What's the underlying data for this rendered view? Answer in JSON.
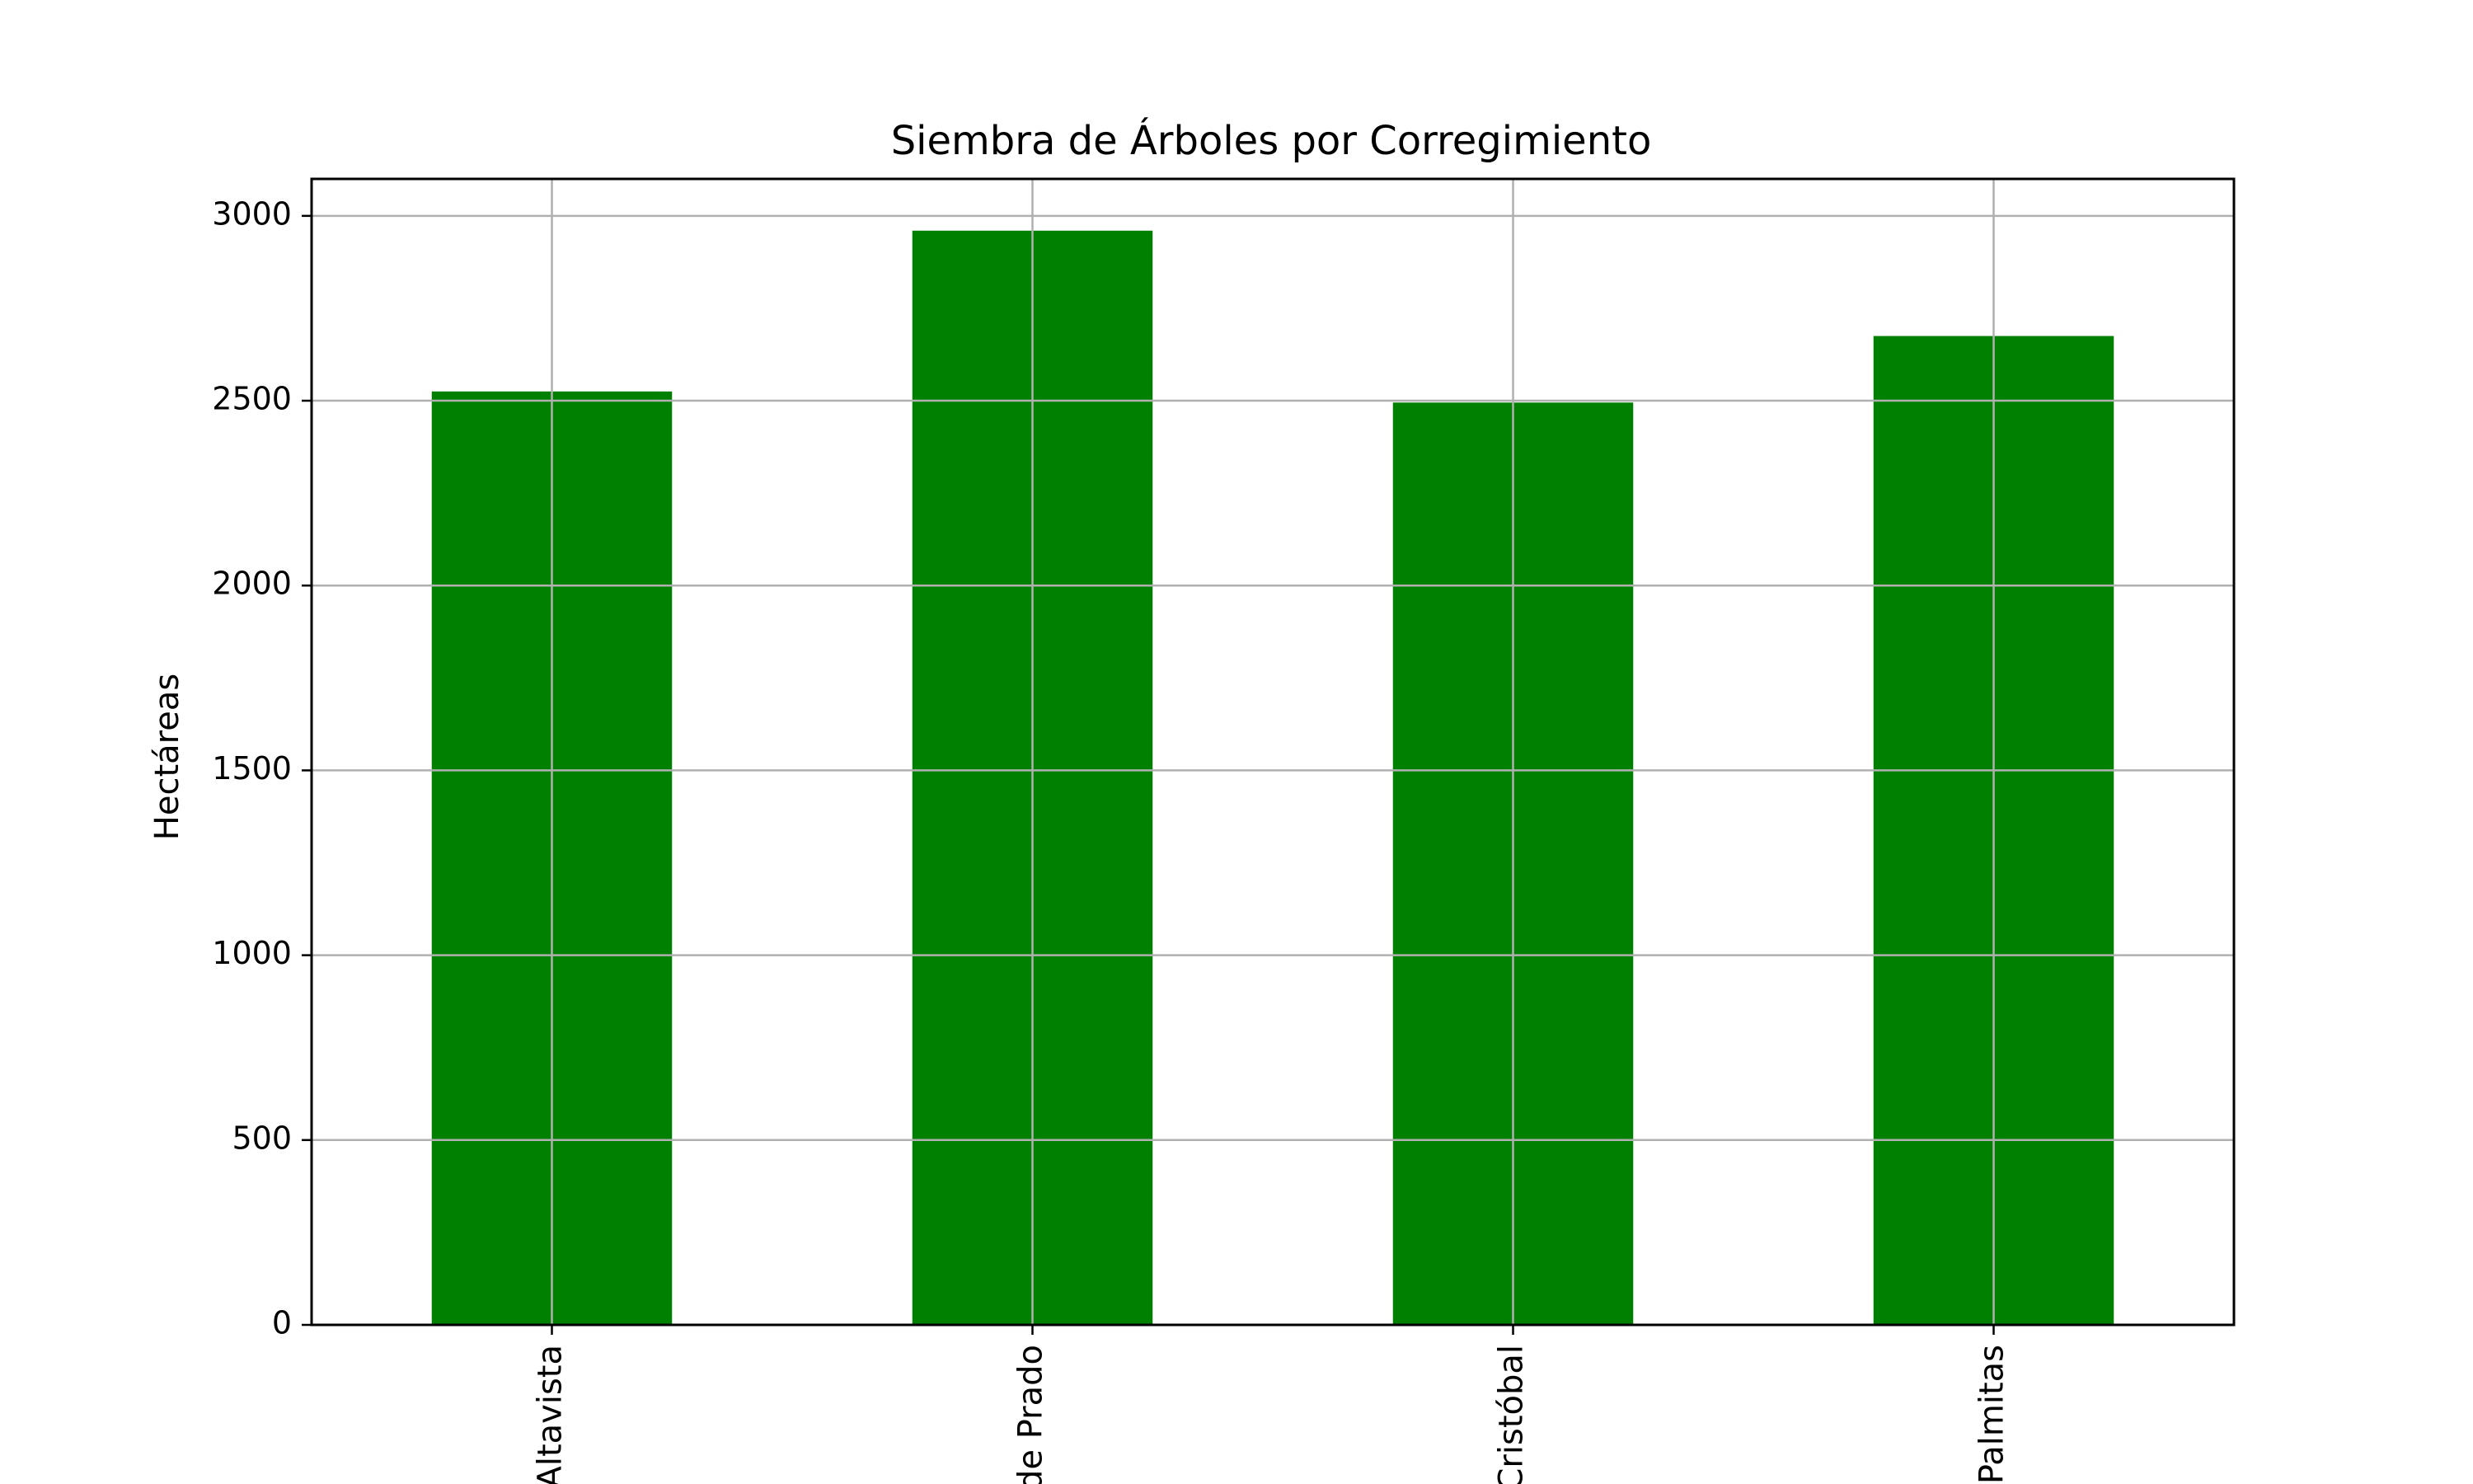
{
  "chart_data": {
    "type": "bar",
    "title": "Siembra de Árboles por Corregimiento",
    "xlabel": "",
    "ylabel": "Hectáreas",
    "categories": [
      "Altavista",
      "de Prado",
      "Cristóbal",
      "Palmitas"
    ],
    "values": [
      2525,
      2960,
      2495,
      2675
    ],
    "ylim": [
      0,
      3100
    ],
    "yticks": [
      0,
      500,
      1000,
      1500,
      2000,
      2500,
      3000
    ],
    "grid": true,
    "legend": "none",
    "x_tick_rotation": "vertical",
    "bar_color": "#008000",
    "grid_color": "#b0b0b0"
  }
}
